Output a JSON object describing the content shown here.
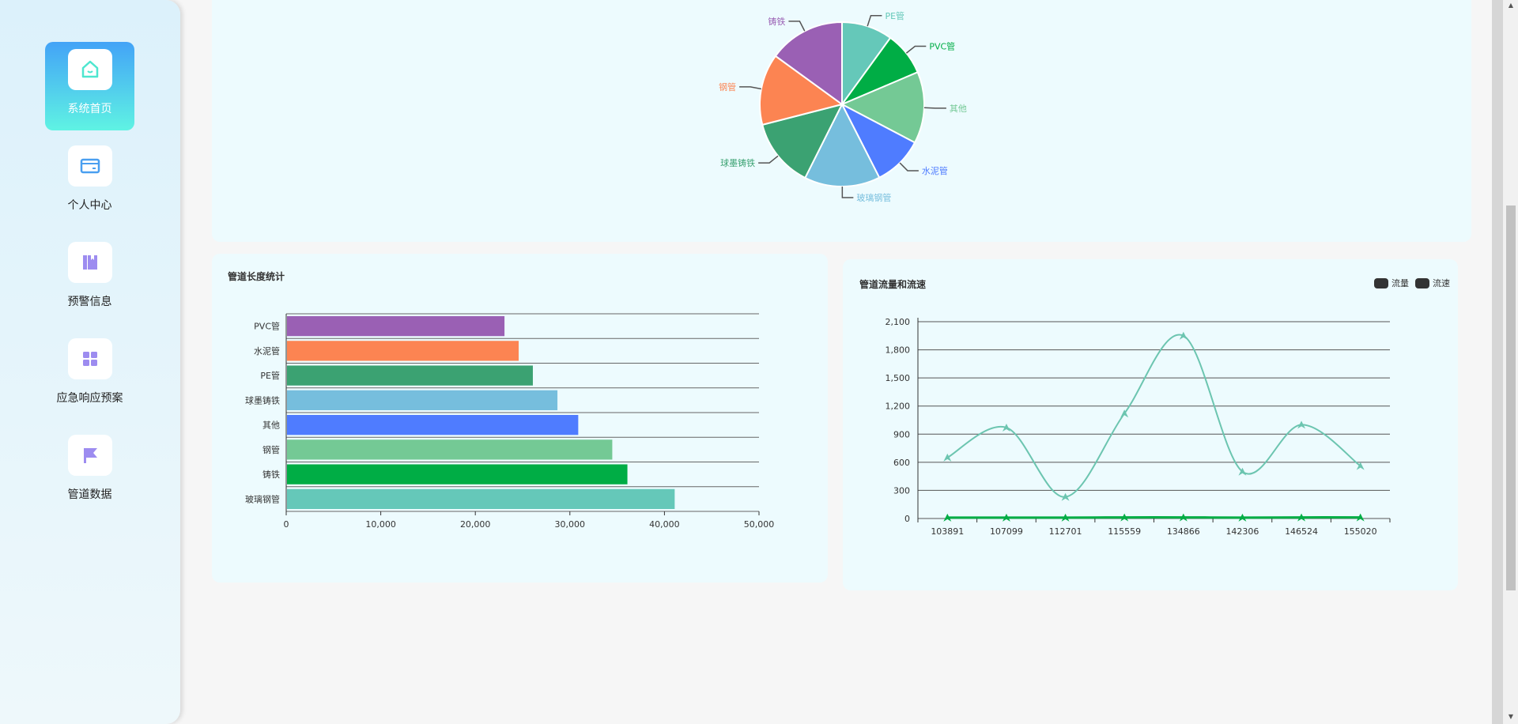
{
  "sidebar": {
    "items": [
      {
        "label": "系统首页",
        "icon": "home-icon",
        "active": true
      },
      {
        "label": "个人中心",
        "icon": "card-icon"
      },
      {
        "label": "预警信息",
        "icon": "book-icon"
      },
      {
        "label": "应急响应预案",
        "icon": "grid-icon"
      },
      {
        "label": "管道数据",
        "icon": "flag-icon"
      }
    ]
  },
  "colors": {
    "accent": "#43a3f7",
    "card_bg": "#edfbfe",
    "line": "#6cc5b0",
    "speed": "#00ad45"
  },
  "chart_data": [
    {
      "type": "pie",
      "title": "",
      "categories": [
        "PE管",
        "PVC管",
        "其他",
        "水泥管",
        "玻璃钢管",
        "球墨铸铁",
        "钢管",
        "铸铁"
      ],
      "values": [
        10,
        8.6,
        14.1,
        9.8,
        14.9,
        13.6,
        14,
        15
      ],
      "colors": [
        "#65c8b9",
        "#00ad45",
        "#74c995",
        "#4f7cff",
        "#76bedd",
        "#3ba272",
        "#fc8452",
        "#9a60b4"
      ]
    },
    {
      "type": "bar",
      "orientation": "horizontal",
      "title": "管道长度统计",
      "categories": [
        "PVC管",
        "水泥管",
        "PE管",
        "球墨铸铁",
        "其他",
        "钢管",
        "铸铁",
        "玻璃钢管"
      ],
      "values": [
        23000,
        24500,
        26000,
        28600,
        30800,
        34400,
        36000,
        41000
      ],
      "colors": [
        "#9a60b4",
        "#fc8452",
        "#3ba272",
        "#76bedd",
        "#4f7cff",
        "#74c995",
        "#00ad45",
        "#65c8b9"
      ],
      "xlim": [
        0,
        50000
      ],
      "xticks": [
        "0",
        "10,000",
        "20,000",
        "30,000",
        "40,000",
        "50,000"
      ]
    },
    {
      "type": "line",
      "title": "管道流量和流速",
      "categories": [
        "103891",
        "107099",
        "112701",
        "115559",
        "134866",
        "142306",
        "146524",
        "155020"
      ],
      "series": [
        {
          "name": "流量",
          "values": [
            650,
            970,
            230,
            1120,
            1950,
            500,
            1000,
            560
          ]
        },
        {
          "name": "流速",
          "values": [
            10,
            10,
            10,
            12,
            12,
            10,
            12,
            12
          ]
        }
      ],
      "ylim": [
        0,
        2100
      ],
      "yticks": [
        "0",
        "300",
        "600",
        "900",
        "1,200",
        "1,500",
        "1,800",
        "2,100"
      ],
      "legend": "top-right"
    }
  ]
}
